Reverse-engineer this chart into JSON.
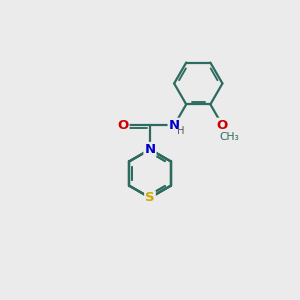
{
  "bg_color": "#ebebeb",
  "bond_color": "#2d6b5e",
  "bond_width": 1.6,
  "atom_colors": {
    "N": "#0000cc",
    "S": "#ccaa00",
    "O": "#cc0000",
    "H": "#555555",
    "C": "#2d6b5e"
  },
  "font_size": 9.5,
  "figsize": [
    3.0,
    3.0
  ],
  "dpi": 100
}
